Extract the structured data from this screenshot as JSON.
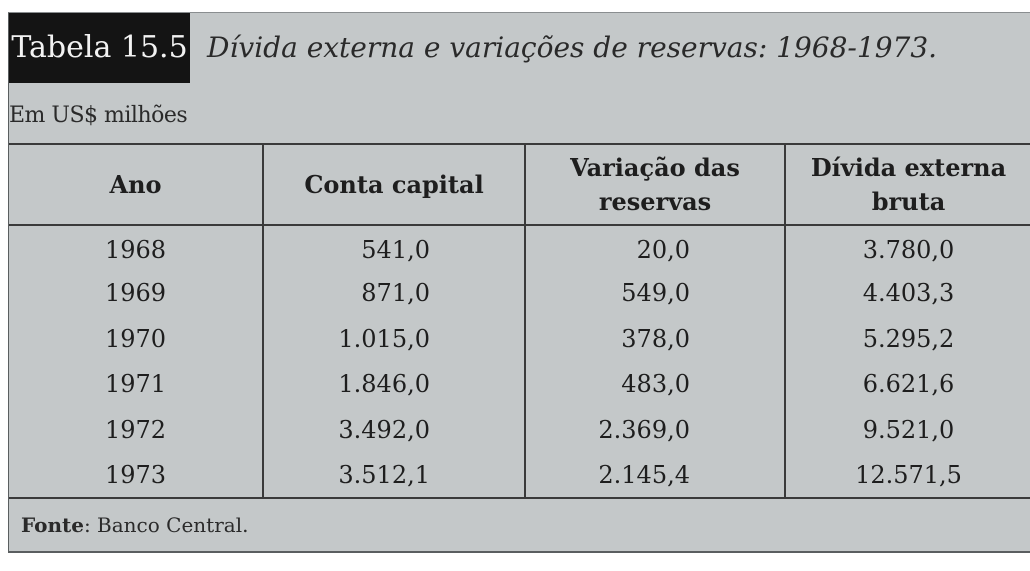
{
  "title": {
    "tag": "Tabela 15.5",
    "text": "Dívida externa e variações de reservas: 1968-1973."
  },
  "unit_label": "Em US$ milhões",
  "table": {
    "headers": [
      "Ano",
      "Conta capital",
      "Variação das reservas",
      "Dívida externa bruta"
    ],
    "rows": [
      [
        "1968",
        "541,0",
        "20,0",
        "3.780,0"
      ],
      [
        "1969",
        "871,0",
        "549,0",
        "4.403,3"
      ],
      [
        "1970",
        "1.015,0",
        "378,0",
        "5.295,2"
      ],
      [
        "1971",
        "1.846,0",
        "483,0",
        "6.621,6"
      ],
      [
        "1972",
        "3.492,0",
        "2.369,0",
        "9.521,0"
      ],
      [
        "1973",
        "3.512,1",
        "2.145,4",
        "12.571,5"
      ]
    ]
  },
  "source": {
    "label": "Fonte",
    "text": ": Banco Central."
  }
}
